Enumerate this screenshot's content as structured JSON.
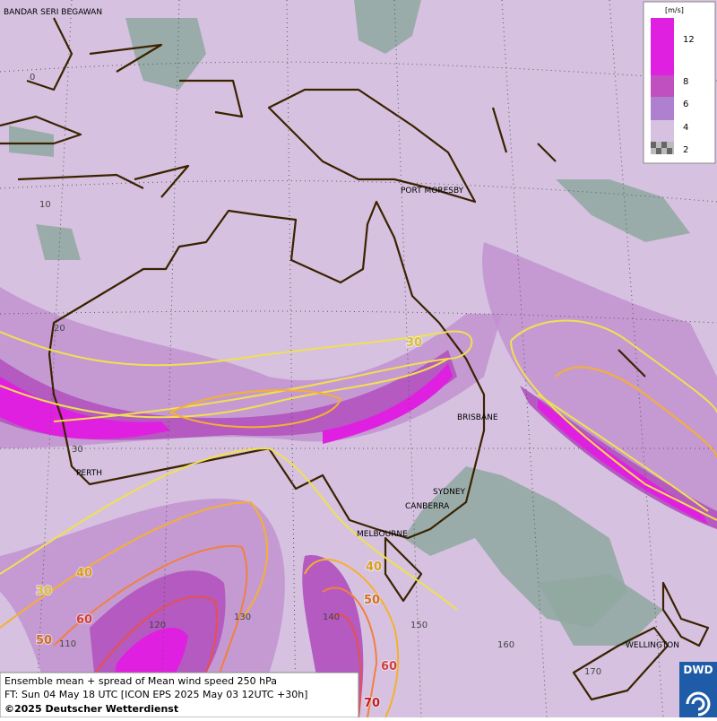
{
  "map": {
    "cities": [
      "BANDAR SERI BEGAWAN",
      "PORT MORESBY",
      "BRISBANE",
      "PERTH",
      "SYDNEY",
      "CANBERRA",
      "MELBOURNE",
      "WELLINGTON"
    ],
    "graticule_labels": [
      0,
      10,
      20,
      30,
      110,
      120,
      130,
      140,
      150,
      160,
      170
    ],
    "contour_labels": [
      30,
      40,
      30,
      60,
      50,
      40,
      50,
      60,
      70
    ],
    "legend": {
      "unit": "[m/s]",
      "levels": [
        12,
        8,
        6,
        4,
        2
      ]
    },
    "footer": {
      "title": "Ensemble mean + spread of Mean wind speed 250 hPa",
      "forecast_time": "FT: Sun 04 May 18 UTC [ICON EPS 2025 May 03 12UTC +30h]",
      "copyright": "©2025 Deutscher Wetterdienst"
    },
    "logo": "DWD"
  }
}
